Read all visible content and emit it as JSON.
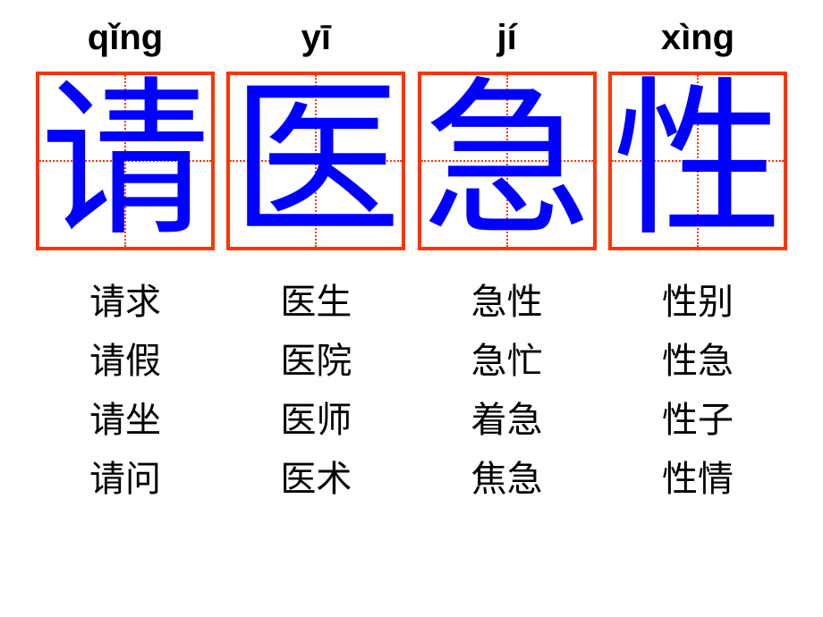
{
  "layout": {
    "box_size": 200,
    "border_width": 4,
    "pinyin_fontsize": 40,
    "char_fontsize": 190,
    "word_fontsize": 40,
    "colors": {
      "border": "#ff3300",
      "guide": "#ff3300",
      "char": "#0000ff",
      "pinyin": "#000000",
      "word": "#000000",
      "background": "#ffffff"
    }
  },
  "columns": [
    {
      "pinyin": "qǐng",
      "char": "请",
      "words": [
        "请求",
        "请假",
        "请坐",
        "请问"
      ]
    },
    {
      "pinyin": "yī",
      "char": "医",
      "words": [
        "医生",
        "医院",
        "医师",
        "医术"
      ]
    },
    {
      "pinyin": "jí",
      "char": "急",
      "words": [
        "急性",
        "急忙",
        "着急",
        "焦急"
      ]
    },
    {
      "pinyin": "xìng",
      "char": "性",
      "words": [
        "性别",
        "性急",
        "性子",
        "性情"
      ]
    }
  ]
}
